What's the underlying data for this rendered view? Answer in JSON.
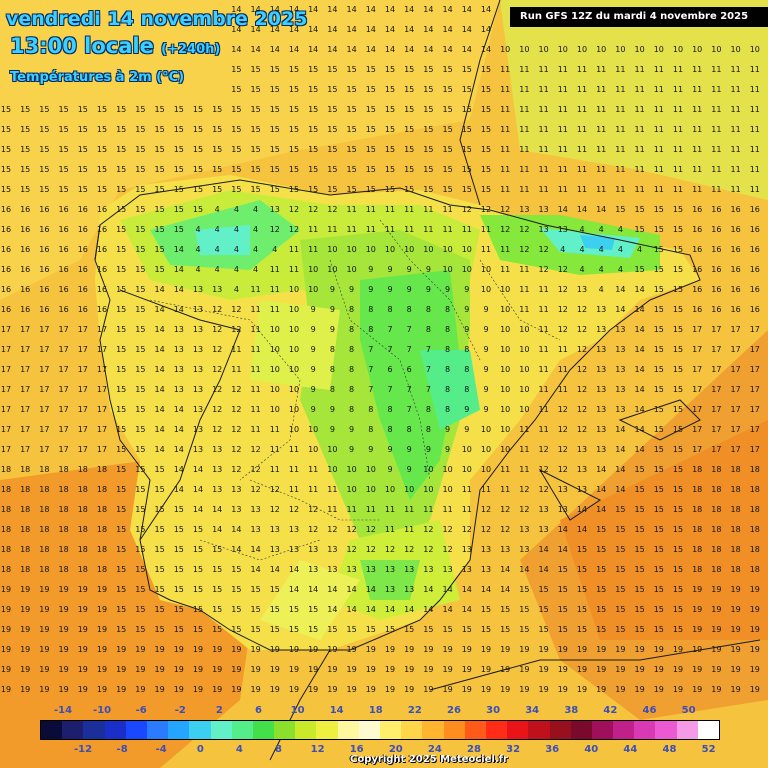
{
  "header": {
    "date_line": "vendredi 14 novembre 2025",
    "time_line": "13:00 locale",
    "lead_time": "(+240h)",
    "variable": "Températures à 2m (°C)",
    "run_info": "Run GFS 12Z du mardi 4 novembre 2025"
  },
  "legend": {
    "top_labels": [
      "-14",
      "-10",
      "-6",
      "-2",
      "2",
      "6",
      "10",
      "14",
      "18",
      "22",
      "26",
      "30",
      "34",
      "38",
      "42",
      "46",
      "50"
    ],
    "bottom_labels": [
      "-12",
      "-8",
      "-4",
      "0",
      "4",
      "8",
      "12",
      "16",
      "20",
      "24",
      "28",
      "32",
      "36",
      "40",
      "44",
      "48",
      "52"
    ],
    "colors": [
      "#0b0b3a",
      "#1d1e6e",
      "#1b2f9a",
      "#1a2fc8",
      "#1a48ff",
      "#2a7bff",
      "#24a5ff",
      "#3cd0f0",
      "#62f0c8",
      "#55ec8a",
      "#44e04c",
      "#8ae02a",
      "#c8ea2a",
      "#eef040",
      "#fff8a0",
      "#fffbd0",
      "#ffef6a",
      "#ffd54a",
      "#ffb52e",
      "#ff8e1f",
      "#ff5a1a",
      "#ff2d18",
      "#e8141a",
      "#c0101c",
      "#98101e",
      "#7a0a2c",
      "#a0105a",
      "#c0208a",
      "#d93ab4",
      "#ec5ad2",
      "#f49ae6",
      "#ffffff"
    ]
  },
  "copyright": "Copyright 2025 Meteociel.fr"
}
